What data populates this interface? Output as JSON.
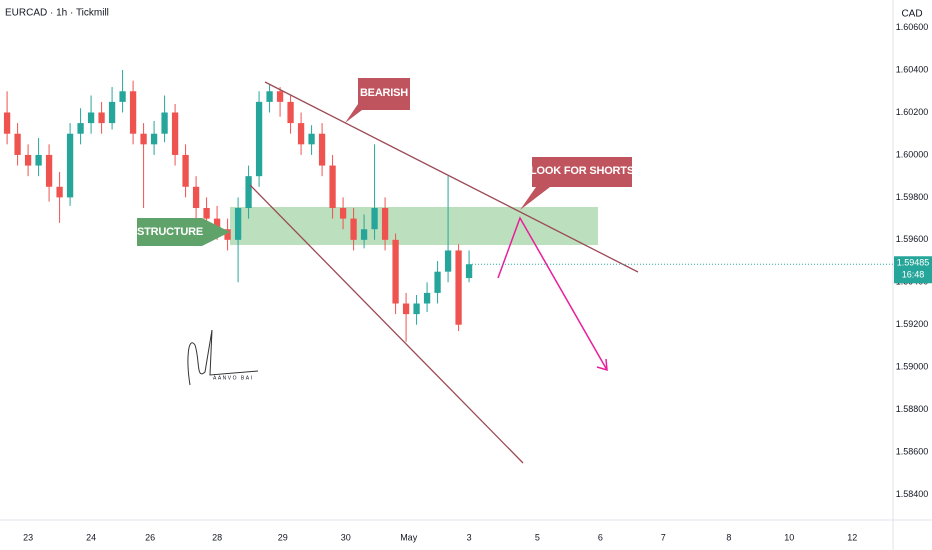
{
  "chart_data": {
    "type": "candlestick",
    "title": "EURCAD · 1h · Tickmill",
    "currency": "CAD",
    "x": [
      -8,
      -4,
      0,
      4,
      8,
      12,
      16,
      20,
      24,
      28,
      32,
      36,
      40,
      44,
      48,
      52,
      56,
      60,
      64,
      68,
      72,
      76,
      80,
      84,
      88,
      92,
      96,
      100,
      104,
      108,
      112,
      116,
      120,
      124,
      128,
      132,
      136,
      140,
      144,
      148,
      152,
      156,
      160,
      164,
      168
    ],
    "open": [
      1.602,
      1.601,
      1.6,
      1.5995,
      1.6,
      1.5985,
      1.598,
      1.601,
      1.6015,
      1.602,
      1.6015,
      1.6025,
      1.603,
      1.601,
      1.6005,
      1.601,
      1.602,
      1.6,
      1.5985,
      1.5975,
      1.597,
      1.5965,
      1.596,
      1.5975,
      1.599,
      1.6025,
      1.603,
      1.6025,
      1.6015,
      1.6005,
      1.601,
      1.5995,
      1.5975,
      1.597,
      1.596,
      1.5965,
      1.5975,
      1.596,
      1.593,
      1.5925,
      1.593,
      1.5935,
      1.5945,
      1.5955,
      1.5942
    ],
    "high": [
      1.603,
      1.6015,
      1.6005,
      1.6008,
      1.6005,
      1.5992,
      1.6015,
      1.6022,
      1.6028,
      1.6025,
      1.6032,
      1.604,
      1.6035,
      1.6015,
      1.6016,
      1.6028,
      1.6024,
      1.6005,
      1.599,
      1.598,
      1.5976,
      1.597,
      1.598,
      1.5995,
      1.603,
      1.6033,
      1.6032,
      1.6028,
      1.602,
      1.6014,
      1.6015,
      1.6,
      1.598,
      1.5975,
      1.5972,
      1.6005,
      1.598,
      1.5963,
      1.5935,
      1.5934,
      1.594,
      1.595,
      1.599,
      1.5958,
      1.5955
    ],
    "low": [
      1.6005,
      1.5995,
      1.599,
      1.599,
      1.5978,
      1.5968,
      1.5976,
      1.6005,
      1.601,
      1.601,
      1.6012,
      1.602,
      1.6005,
      1.5975,
      1.6,
      1.6006,
      1.5995,
      1.598,
      1.597,
      1.5965,
      1.596,
      1.5955,
      1.594,
      1.597,
      1.5985,
      1.602,
      1.6018,
      1.601,
      1.6,
      1.6,
      1.599,
      1.597,
      1.5965,
      1.5955,
      1.5956,
      1.596,
      1.5955,
      1.5925,
      1.5912,
      1.592,
      1.5926,
      1.593,
      1.594,
      1.5917,
      1.594
    ],
    "close": [
      1.601,
      1.6,
      1.5995,
      1.6,
      1.5985,
      1.598,
      1.601,
      1.6015,
      1.602,
      1.6015,
      1.6025,
      1.603,
      1.601,
      1.6005,
      1.601,
      1.602,
      1.6,
      1.5985,
      1.5975,
      1.597,
      1.5965,
      1.596,
      1.5975,
      1.599,
      1.6025,
      1.603,
      1.6025,
      1.6015,
      1.6005,
      1.601,
      1.5995,
      1.5975,
      1.597,
      1.596,
      1.5965,
      1.5975,
      1.596,
      1.593,
      1.5925,
      1.593,
      1.5935,
      1.5945,
      1.5955,
      1.592,
      1.59485
    ],
    "up_color": "#26a69a",
    "down_color": "#ef5350",
    "xlim": [
      -10.7,
      329.5
    ],
    "xticks": [
      {
        "value": 0,
        "label": "23"
      },
      {
        "value": 24,
        "label": "24"
      },
      {
        "value": 46.5,
        "label": "26"
      },
      {
        "value": 72,
        "label": "28"
      },
      {
        "value": 97,
        "label": "29"
      },
      {
        "value": 121,
        "label": "30"
      },
      {
        "value": 145,
        "label": "May"
      },
      {
        "value": 168,
        "label": "3"
      },
      {
        "value": 194,
        "label": "5"
      },
      {
        "value": 218,
        "label": "6"
      },
      {
        "value": 242,
        "label": "7"
      },
      {
        "value": 267,
        "label": "8"
      },
      {
        "value": 290,
        "label": "10"
      },
      {
        "value": 314,
        "label": "12"
      }
    ],
    "ylim": [
      1.5828,
      1.6073
    ],
    "yticks": [
      {
        "value": 1.606,
        "label": "1.60600"
      },
      {
        "value": 1.604,
        "label": "1.60400"
      },
      {
        "value": 1.602,
        "label": "1.60200"
      },
      {
        "value": 1.6,
        "label": "1.60000"
      },
      {
        "value": 1.598,
        "label": "1.59800"
      },
      {
        "value": 1.596,
        "label": "1.59600"
      },
      {
        "value": 1.594,
        "label": "1.59400"
      },
      {
        "value": 1.592,
        "label": "1.59200"
      },
      {
        "value": 1.59,
        "label": "1.59000"
      },
      {
        "value": 1.588,
        "label": "1.58800"
      },
      {
        "value": 1.586,
        "label": "1.58600"
      },
      {
        "value": 1.584,
        "label": "1.58400"
      }
    ],
    "grid": false,
    "last_price": 1.59485,
    "countdown": "16:48",
    "annotations": [
      "BEARISH",
      "LOOK FOR SHORTS",
      "STRUCTURE"
    ],
    "signature": "AANVO BAI"
  }
}
